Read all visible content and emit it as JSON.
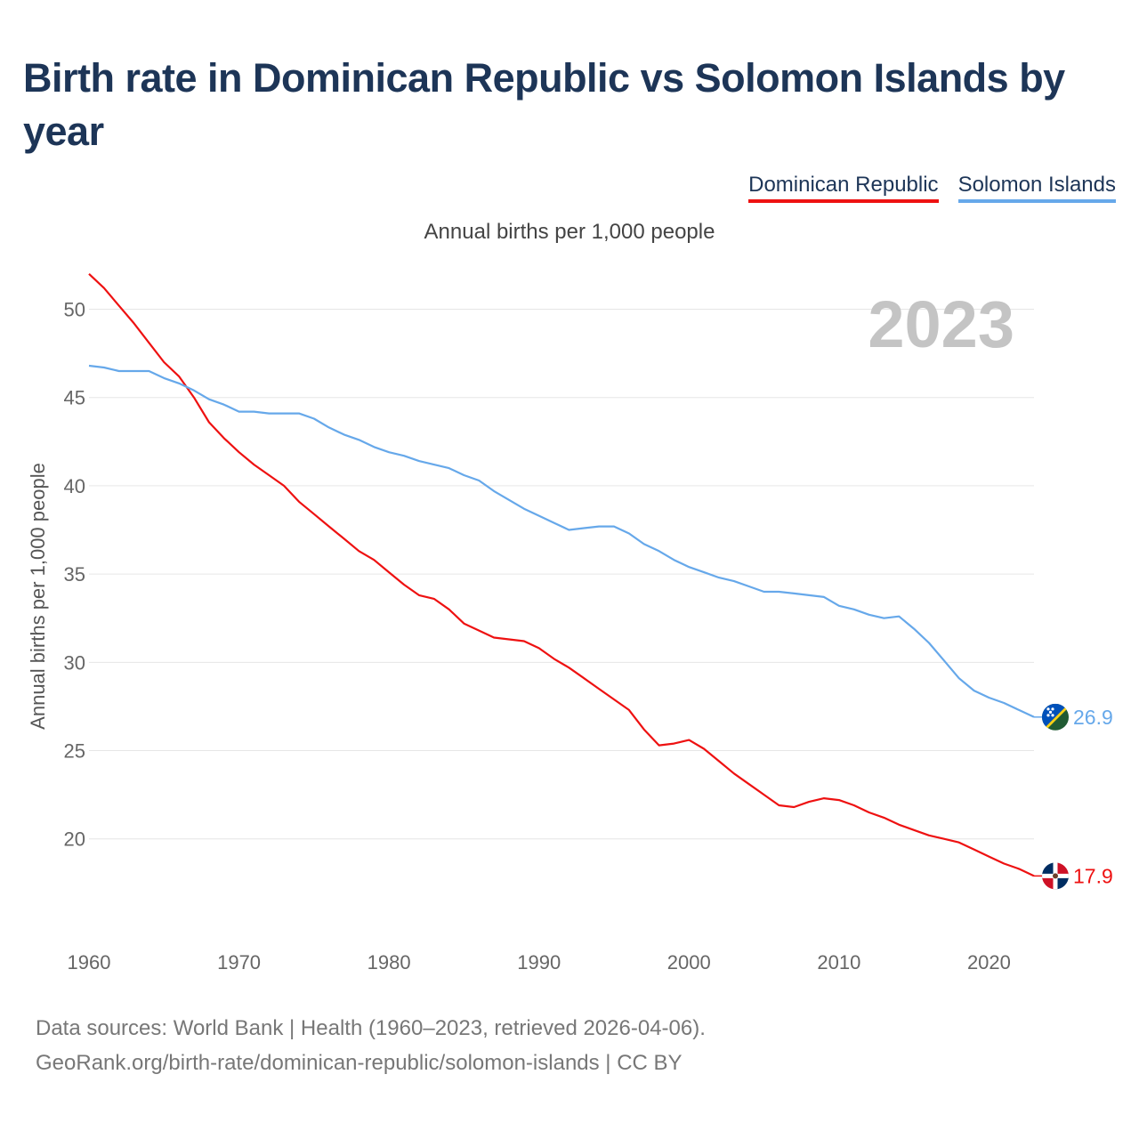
{
  "title": "Birth rate in Dominican Republic vs Solomon Islands by year",
  "subtitle": "Annual births per 1,000 people",
  "footer": {
    "sources": "Data sources: World Bank | Health (1960–2023, retrieved 2026-04-06).",
    "credit": "GeoRank.org/birth-rate/dominican-republic/solomon-islands | CC BY"
  },
  "colors": {
    "dominican": "#ee1111",
    "solomon": "#66a8ea",
    "grid": "#e6e6e6",
    "year": "#c4c4c4"
  },
  "chart_data": {
    "type": "line",
    "title": "Birth rate in Dominican Republic vs Solomon Islands by year",
    "ylabel": "Annual births per 1,000 people",
    "xlabel": "",
    "current_year": "2023",
    "xlim": [
      1960,
      2023
    ],
    "ylim": [
      15.5,
      53
    ],
    "x_ticks": [
      1960,
      1970,
      1980,
      1990,
      2000,
      2010,
      2020
    ],
    "y_ticks": [
      20,
      25,
      30,
      35,
      40,
      45,
      50
    ],
    "legend_position": "top-right",
    "x": [
      1960,
      1961,
      1962,
      1963,
      1964,
      1965,
      1966,
      1967,
      1968,
      1969,
      1970,
      1971,
      1972,
      1973,
      1974,
      1975,
      1976,
      1977,
      1978,
      1979,
      1980,
      1981,
      1982,
      1983,
      1984,
      1985,
      1986,
      1987,
      1988,
      1989,
      1990,
      1991,
      1992,
      1993,
      1994,
      1995,
      1996,
      1997,
      1998,
      1999,
      2000,
      2001,
      2002,
      2003,
      2004,
      2005,
      2006,
      2007,
      2008,
      2009,
      2010,
      2011,
      2012,
      2013,
      2014,
      2015,
      2016,
      2017,
      2018,
      2019,
      2020,
      2021,
      2022,
      2023
    ],
    "series": [
      {
        "name": "Dominican Republic",
        "end_label": "17.9",
        "values": [
          52.0,
          51.2,
          50.2,
          49.2,
          48.1,
          47.0,
          46.2,
          45.0,
          43.6,
          42.7,
          41.9,
          41.2,
          40.6,
          40.0,
          39.1,
          38.4,
          37.7,
          37.0,
          36.3,
          35.8,
          35.1,
          34.4,
          33.8,
          33.6,
          33.0,
          32.2,
          31.8,
          31.4,
          31.3,
          31.2,
          30.8,
          30.2,
          29.7,
          29.1,
          28.5,
          27.9,
          27.3,
          26.2,
          25.3,
          25.4,
          25.6,
          25.1,
          24.4,
          23.7,
          23.1,
          22.5,
          21.9,
          21.8,
          22.1,
          22.3,
          22.2,
          21.9,
          21.5,
          21.2,
          20.8,
          20.5,
          20.2,
          20.0,
          19.8,
          19.4,
          19.0,
          18.6,
          18.3,
          17.9
        ]
      },
      {
        "name": "Solomon Islands",
        "end_label": "26.9",
        "values": [
          46.8,
          46.7,
          46.5,
          46.5,
          46.5,
          46.1,
          45.8,
          45.4,
          44.9,
          44.6,
          44.2,
          44.2,
          44.1,
          44.1,
          44.1,
          43.8,
          43.3,
          42.9,
          42.6,
          42.2,
          41.9,
          41.7,
          41.4,
          41.2,
          41.0,
          40.6,
          40.3,
          39.7,
          39.2,
          38.7,
          38.3,
          37.9,
          37.5,
          37.6,
          37.7,
          37.7,
          37.3,
          36.7,
          36.3,
          35.8,
          35.4,
          35.1,
          34.8,
          34.6,
          34.3,
          34.0,
          34.0,
          33.9,
          33.8,
          33.7,
          33.2,
          33.0,
          32.7,
          32.5,
          32.6,
          31.9,
          31.1,
          30.1,
          29.1,
          28.4,
          28.0,
          27.7,
          27.3,
          26.9
        ]
      }
    ]
  }
}
